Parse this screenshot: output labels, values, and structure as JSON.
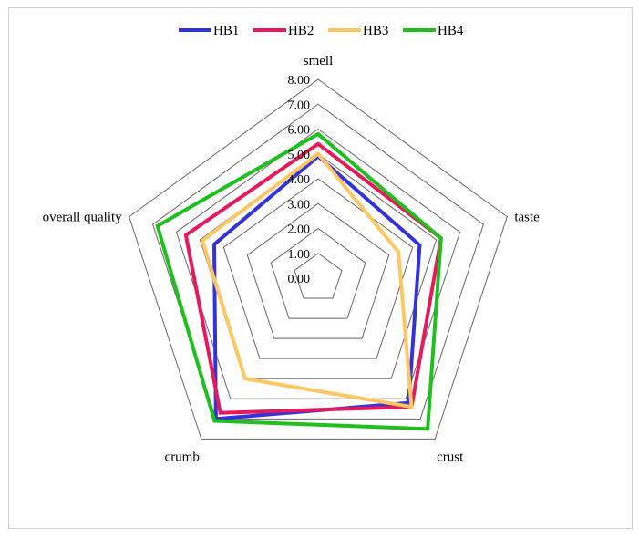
{
  "chart_data": {
    "type": "radar",
    "axes": [
      "smell",
      "taste",
      "crust",
      "crumb",
      "overall quality"
    ],
    "ticks": [
      "0.00",
      "1.00",
      "2.00",
      "3.00",
      "4.00",
      "5.00",
      "6.00",
      "7.00",
      "8.00"
    ],
    "range": [
      0,
      8
    ],
    "legend_position": "top",
    "series": [
      {
        "name": "HB1",
        "color": "#3333dd",
        "values": [
          4.9,
          4.3,
          6.2,
          7.0,
          4.4
        ]
      },
      {
        "name": "HB2",
        "color": "#e8195a",
        "values": [
          5.4,
          5.2,
          6.4,
          6.7,
          5.6
        ]
      },
      {
        "name": "HB3",
        "color": "#ffc761",
        "values": [
          5.0,
          3.4,
          6.4,
          5.0,
          4.9
        ]
      },
      {
        "name": "HB4",
        "color": "#1ec01e",
        "values": [
          5.8,
          5.2,
          7.5,
          7.1,
          6.8
        ]
      }
    ]
  }
}
